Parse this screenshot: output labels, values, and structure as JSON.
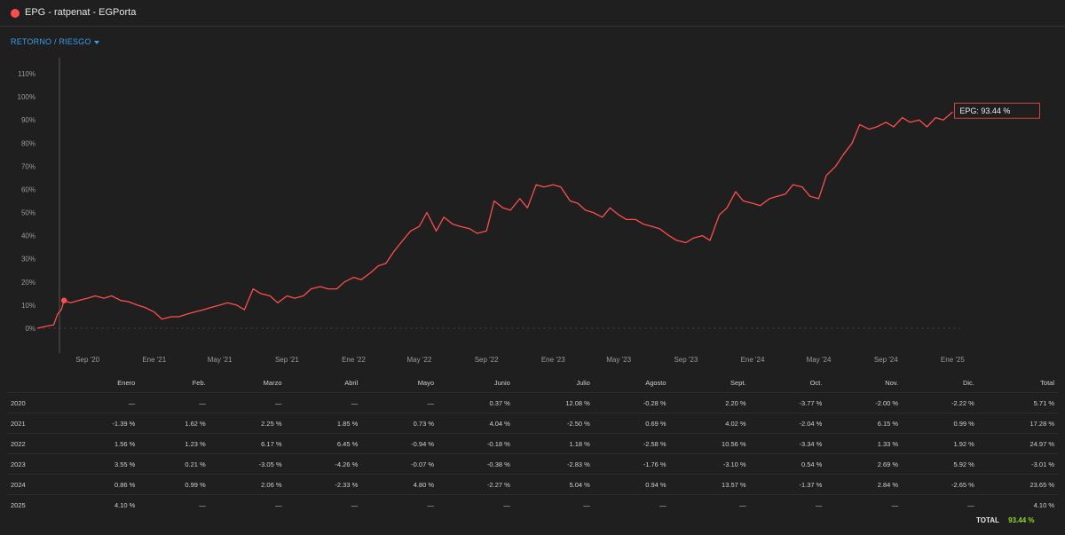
{
  "header": {
    "title": "EPG - ratpenat - EGPorta",
    "dot_color": "#ff4d4d"
  },
  "tab": {
    "label": "RETORNO / RIESGO"
  },
  "chart_data": {
    "type": "line",
    "series": [
      {
        "name": "EPG",
        "color": "#ff4d4d",
        "points": [
          [
            "2020-06-01",
            0
          ],
          [
            "2020-06-20",
            1
          ],
          [
            "2020-07-01",
            1.5
          ],
          [
            "2020-07-08",
            6
          ],
          [
            "2020-07-15",
            8
          ],
          [
            "2020-07-20",
            12
          ],
          [
            "2020-08-01",
            11
          ],
          [
            "2020-08-15",
            12
          ],
          [
            "2020-09-01",
            13
          ],
          [
            "2020-09-15",
            14
          ],
          [
            "2020-10-01",
            13
          ],
          [
            "2020-10-15",
            14
          ],
          [
            "2020-11-01",
            12
          ],
          [
            "2020-11-15",
            11.5
          ],
          [
            "2020-12-01",
            10
          ],
          [
            "2020-12-15",
            9
          ],
          [
            "2021-01-01",
            7
          ],
          [
            "2021-01-15",
            4
          ],
          [
            "2021-02-01",
            5
          ],
          [
            "2021-02-15",
            5
          ],
          [
            "2021-03-01",
            6
          ],
          [
            "2021-03-15",
            7
          ],
          [
            "2021-04-01",
            8
          ],
          [
            "2021-04-15",
            9
          ],
          [
            "2021-05-01",
            10
          ],
          [
            "2021-05-15",
            11
          ],
          [
            "2021-06-01",
            10
          ],
          [
            "2021-06-15",
            8
          ],
          [
            "2021-07-01",
            17
          ],
          [
            "2021-07-15",
            15
          ],
          [
            "2021-08-01",
            14
          ],
          [
            "2021-08-15",
            11
          ],
          [
            "2021-09-01",
            14
          ],
          [
            "2021-09-15",
            13
          ],
          [
            "2021-10-01",
            14
          ],
          [
            "2021-10-15",
            17
          ],
          [
            "2021-11-01",
            18
          ],
          [
            "2021-11-15",
            17
          ],
          [
            "2021-12-01",
            17
          ],
          [
            "2021-12-15",
            20
          ],
          [
            "2022-01-01",
            22
          ],
          [
            "2022-01-15",
            21
          ],
          [
            "2022-02-01",
            24
          ],
          [
            "2022-02-15",
            27
          ],
          [
            "2022-03-01",
            28
          ],
          [
            "2022-03-15",
            33
          ],
          [
            "2022-04-01",
            38
          ],
          [
            "2022-04-15",
            42
          ],
          [
            "2022-05-01",
            44
          ],
          [
            "2022-05-15",
            50
          ],
          [
            "2022-06-01",
            42
          ],
          [
            "2022-06-15",
            48
          ],
          [
            "2022-07-01",
            45
          ],
          [
            "2022-07-15",
            44
          ],
          [
            "2022-08-01",
            43
          ],
          [
            "2022-08-15",
            41
          ],
          [
            "2022-09-01",
            42
          ],
          [
            "2022-09-15",
            55
          ],
          [
            "2022-10-01",
            52
          ],
          [
            "2022-10-15",
            51
          ],
          [
            "2022-11-01",
            56
          ],
          [
            "2022-11-15",
            52
          ],
          [
            "2022-12-01",
            62
          ],
          [
            "2022-12-15",
            61
          ],
          [
            "2023-01-01",
            62
          ],
          [
            "2023-01-15",
            61
          ],
          [
            "2023-02-01",
            55
          ],
          [
            "2023-02-15",
            54
          ],
          [
            "2023-03-01",
            51
          ],
          [
            "2023-03-15",
            50
          ],
          [
            "2023-04-01",
            48
          ],
          [
            "2023-04-15",
            52
          ],
          [
            "2023-05-01",
            49
          ],
          [
            "2023-05-15",
            47
          ],
          [
            "2023-06-01",
            47
          ],
          [
            "2023-06-15",
            45
          ],
          [
            "2023-07-01",
            44
          ],
          [
            "2023-07-15",
            43
          ],
          [
            "2023-08-01",
            40
          ],
          [
            "2023-08-15",
            38
          ],
          [
            "2023-09-01",
            37
          ],
          [
            "2023-09-15",
            39
          ],
          [
            "2023-10-01",
            40
          ],
          [
            "2023-10-15",
            38
          ],
          [
            "2023-11-01",
            49
          ],
          [
            "2023-11-15",
            52
          ],
          [
            "2023-12-01",
            59
          ],
          [
            "2023-12-15",
            55
          ],
          [
            "2024-01-01",
            54
          ],
          [
            "2024-01-15",
            53
          ],
          [
            "2024-02-01",
            56
          ],
          [
            "2024-02-15",
            57
          ],
          [
            "2024-03-01",
            58
          ],
          [
            "2024-03-15",
            62
          ],
          [
            "2024-04-01",
            61
          ],
          [
            "2024-04-15",
            57
          ],
          [
            "2024-05-01",
            56
          ],
          [
            "2024-05-15",
            66
          ],
          [
            "2024-06-01",
            70
          ],
          [
            "2024-06-15",
            75
          ],
          [
            "2024-07-01",
            80
          ],
          [
            "2024-07-15",
            88
          ],
          [
            "2024-08-01",
            86
          ],
          [
            "2024-08-15",
            87
          ],
          [
            "2024-09-01",
            89
          ],
          [
            "2024-09-15",
            87
          ],
          [
            "2024-10-01",
            91
          ],
          [
            "2024-10-15",
            89
          ],
          [
            "2024-11-01",
            90
          ],
          [
            "2024-11-15",
            87
          ],
          [
            "2024-12-01",
            91
          ],
          [
            "2024-12-15",
            90
          ],
          [
            "2025-01-01",
            93.44
          ]
        ]
      }
    ],
    "xticks": [
      {
        "label": "Sep '20",
        "date": "2020-09-01"
      },
      {
        "label": "Ene '21",
        "date": "2021-01-01"
      },
      {
        "label": "May '21",
        "date": "2021-05-01"
      },
      {
        "label": "Sep '21",
        "date": "2021-09-01"
      },
      {
        "label": "Ene '22",
        "date": "2022-01-01"
      },
      {
        "label": "May '22",
        "date": "2022-05-01"
      },
      {
        "label": "Sep '22",
        "date": "2022-09-01"
      },
      {
        "label": "Ene '23",
        "date": "2023-01-01"
      },
      {
        "label": "May '23",
        "date": "2023-05-01"
      },
      {
        "label": "Sep '23",
        "date": "2023-09-01"
      },
      {
        "label": "Ene '24",
        "date": "2024-01-01"
      },
      {
        "label": "May '24",
        "date": "2024-05-01"
      },
      {
        "label": "Sep '24",
        "date": "2024-09-01"
      },
      {
        "label": "Ene '25",
        "date": "2025-01-01"
      }
    ],
    "yticks": [
      0,
      10,
      20,
      30,
      40,
      50,
      60,
      70,
      80,
      90,
      100,
      110
    ],
    "ylim": [
      0,
      110
    ],
    "xlim": [
      "2020-06-01",
      "2025-01-15"
    ],
    "tooltip": "EPG: 93.44 %",
    "marker_date": "2020-07-20"
  },
  "table": {
    "headers": [
      "",
      "Enero",
      "Feb.",
      "Marzo",
      "Abril",
      "Mayo",
      "Junio",
      "Julio",
      "Agosto",
      "Sept.",
      "Oct.",
      "Nov.",
      "Dic.",
      "Total"
    ],
    "rows": [
      [
        "2020",
        "—",
        "—",
        "—",
        "—",
        "—",
        "0.37 %",
        "12.08 %",
        "-0.28 %",
        "2.20 %",
        "-3.77 %",
        "-2.00 %",
        "-2.22 %",
        "5.71 %"
      ],
      [
        "2021",
        "-1.39 %",
        "1.62 %",
        "2.25 %",
        "1.85 %",
        "0.73 %",
        "4.04 %",
        "-2.50 %",
        "0.69 %",
        "4.02 %",
        "-2.04 %",
        "6.15 %",
        "0.99 %",
        "17.28 %"
      ],
      [
        "2022",
        "1.56 %",
        "1.23 %",
        "6.17 %",
        "6.45 %",
        "-0.94 %",
        "-0.18 %",
        "1.18 %",
        "-2.58 %",
        "10.56 %",
        "-3.34 %",
        "1.33 %",
        "1.92 %",
        "24.97 %"
      ],
      [
        "2023",
        "3.55 %",
        "0.21 %",
        "-3.05 %",
        "-4.26 %",
        "-0.07 %",
        "-0.38 %",
        "-2.83 %",
        "-1.76 %",
        "-3.10 %",
        "0.54 %",
        "2.69 %",
        "5.92 %",
        "-3.01 %"
      ],
      [
        "2024",
        "0.86 %",
        "0.99 %",
        "2.06 %",
        "-2.33 %",
        "4.80 %",
        "-2.27 %",
        "5.04 %",
        "0.94 %",
        "13.57 %",
        "-1.37 %",
        "2.84 %",
        "-2.65 %",
        "23.65 %"
      ],
      [
        "2025",
        "4.10 %",
        "—",
        "—",
        "—",
        "—",
        "—",
        "—",
        "—",
        "—",
        "—",
        "—",
        "—",
        "4.10 %"
      ]
    ]
  },
  "total": {
    "label": "TOTAL",
    "value": "93.44 %"
  },
  "colors": {
    "positive": "#8bdc1f",
    "negative": "#ff4d4d",
    "line": "#ff4d4d"
  }
}
